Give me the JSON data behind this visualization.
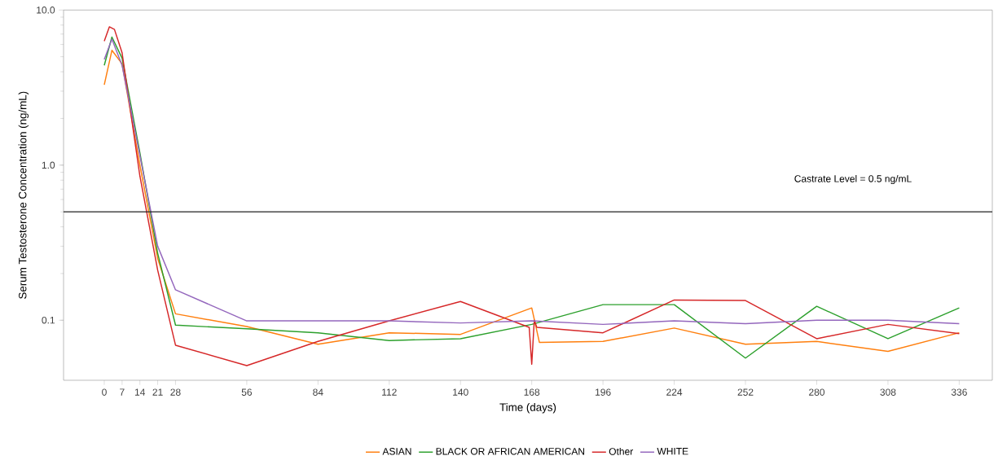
{
  "chart_data": {
    "type": "line",
    "xlabel": "Time (days)",
    "ylabel": "Serum Testosterone Concentration (ng/mL)",
    "log": "y",
    "xlim": [
      -16,
      349
    ],
    "ylim": [
      0.041,
      10
    ],
    "xticks": [
      0,
      7,
      14,
      21,
      28,
      56,
      84,
      112,
      140,
      168,
      196,
      224,
      252,
      280,
      308,
      336
    ],
    "yticks": [
      {
        "value": 0.1,
        "label": "0.1"
      },
      {
        "value": 1,
        "label": "1.0"
      },
      {
        "value": 10,
        "label": "10.0"
      }
    ],
    "grid": false,
    "legend": "bottom",
    "marker": "none",
    "line_style": "solid",
    "ref_lines": [
      {
        "axis": "y",
        "value": 0.5,
        "label": "Castrate Level = 0.5 ng/mL",
        "color": "#222222"
      }
    ],
    "series": [
      {
        "name": "ASIAN",
        "color": "#ff7f0e",
        "x": [
          0,
          3,
          7,
          14,
          21,
          28,
          56,
          84,
          112,
          140,
          168,
          171,
          196,
          224,
          252,
          280,
          308,
          336
        ],
        "values": [
          3.3,
          5.5,
          4.5,
          1.0,
          0.25,
          0.11,
          0.091,
          0.07,
          0.083,
          0.081,
          0.12,
          0.072,
          0.073,
          0.089,
          0.07,
          0.073,
          0.063,
          0.083
        ]
      },
      {
        "name": "BLACK OR AFRICAN AMERICAN",
        "color": "#2ca02c",
        "x": [
          0,
          3,
          7,
          14,
          21,
          28,
          56,
          84,
          112,
          140,
          168,
          196,
          224,
          252,
          280,
          308,
          336
        ],
        "values": [
          4.4,
          6.7,
          4.9,
          1.2,
          0.27,
          0.093,
          0.088,
          0.083,
          0.074,
          0.076,
          0.094,
          0.126,
          0.126,
          0.057,
          0.123,
          0.076,
          0.12
        ]
      },
      {
        "name": "Other",
        "color": "#d62728",
        "x": [
          0,
          2,
          4,
          7,
          14,
          21,
          28,
          56,
          84,
          112,
          140,
          167,
          168,
          169,
          170,
          196,
          224,
          252,
          280,
          308,
          336
        ],
        "values": [
          6.3,
          7.8,
          7.5,
          5.3,
          0.85,
          0.21,
          0.069,
          0.051,
          0.073,
          0.099,
          0.132,
          0.09,
          0.052,
          0.1,
          0.09,
          0.083,
          0.135,
          0.134,
          0.076,
          0.094,
          0.082
        ]
      },
      {
        "name": "WHITE",
        "color": "#9467bd",
        "x": [
          0,
          3,
          7,
          14,
          21,
          28,
          56,
          84,
          112,
          140,
          168,
          196,
          224,
          252,
          280,
          308,
          336
        ],
        "values": [
          4.8,
          6.5,
          4.4,
          1.15,
          0.3,
          0.157,
          0.099,
          0.099,
          0.099,
          0.096,
          0.099,
          0.094,
          0.099,
          0.095,
          0.1,
          0.1,
          0.095
        ]
      }
    ]
  }
}
